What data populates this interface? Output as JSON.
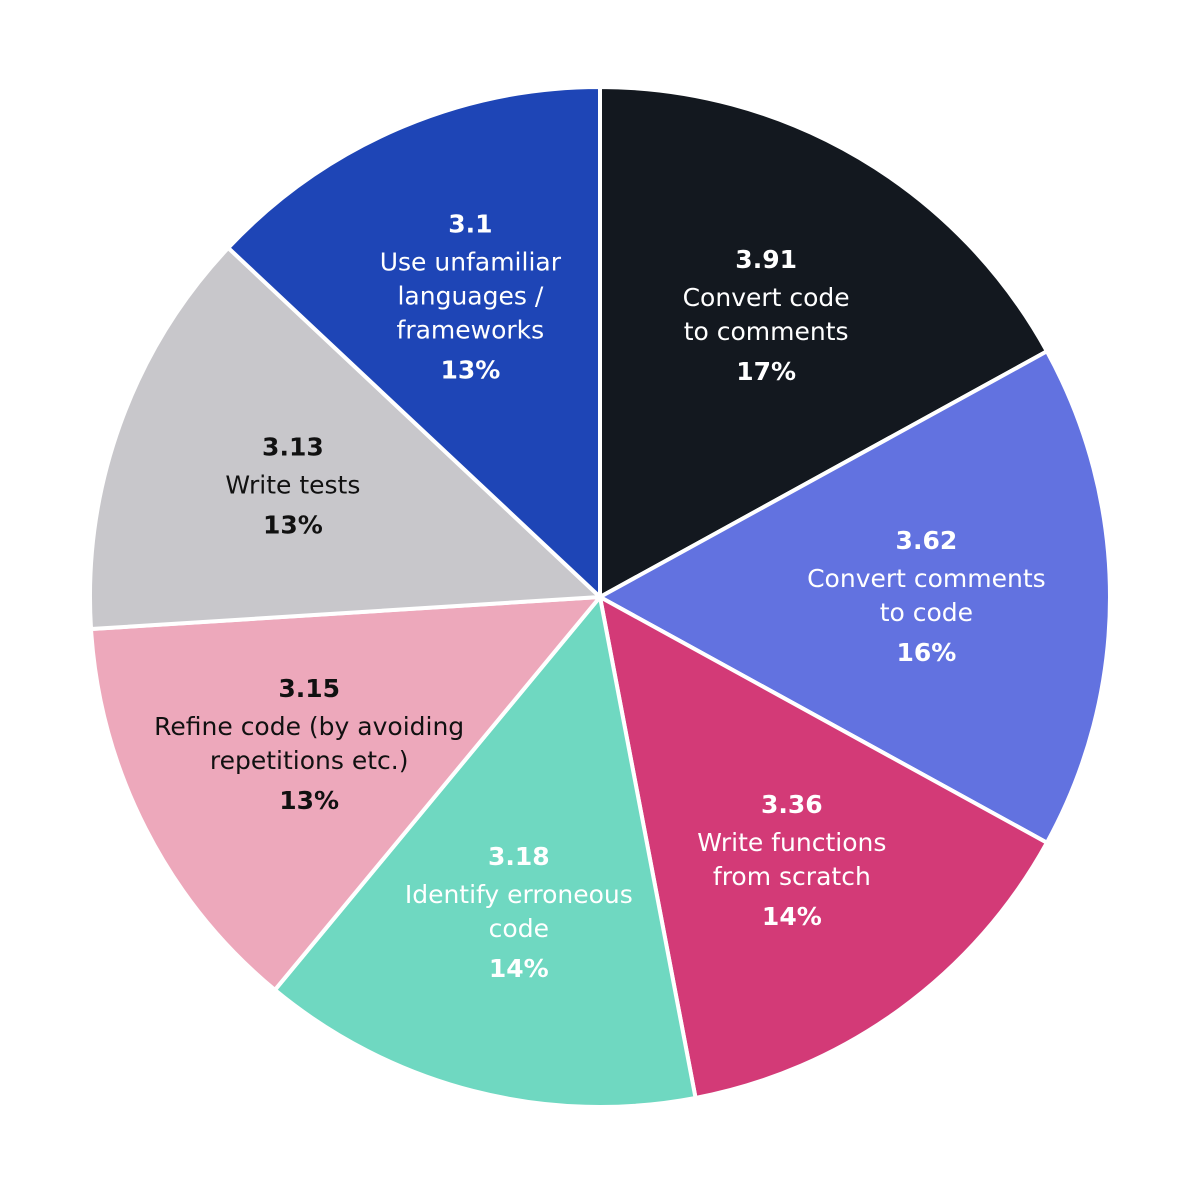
{
  "chart_data": {
    "type": "pie",
    "categories": [
      [
        "Convert code",
        "to comments"
      ],
      [
        "Convert comments",
        "to code"
      ],
      [
        "Write functions",
        "from scratch"
      ],
      [
        "Identify erroneous",
        "code"
      ],
      [
        "Refine code (by avoiding",
        "repetitions etc.)"
      ],
      [
        "Write tests"
      ],
      [
        "Use unfamiliar",
        "languages /",
        "frameworks"
      ]
    ],
    "scores": [
      3.91,
      3.62,
      3.36,
      3.18,
      3.15,
      3.13,
      3.1
    ],
    "values": [
      17,
      16,
      14,
      14,
      13,
      13,
      13
    ],
    "value_labels": [
      "17%",
      "16%",
      "14%",
      "14%",
      "13%",
      "13%",
      "13%"
    ],
    "colors": [
      "#13181f",
      "#6272e0",
      "#d33a77",
      "#6fd8c1",
      "#eda8bb",
      "#c8c7cb",
      "#1e45b6"
    ],
    "text_colors": [
      "#ffffff",
      "#ffffff",
      "#ffffff",
      "#ffffff",
      "#111111",
      "#111111",
      "#ffffff"
    ]
  }
}
